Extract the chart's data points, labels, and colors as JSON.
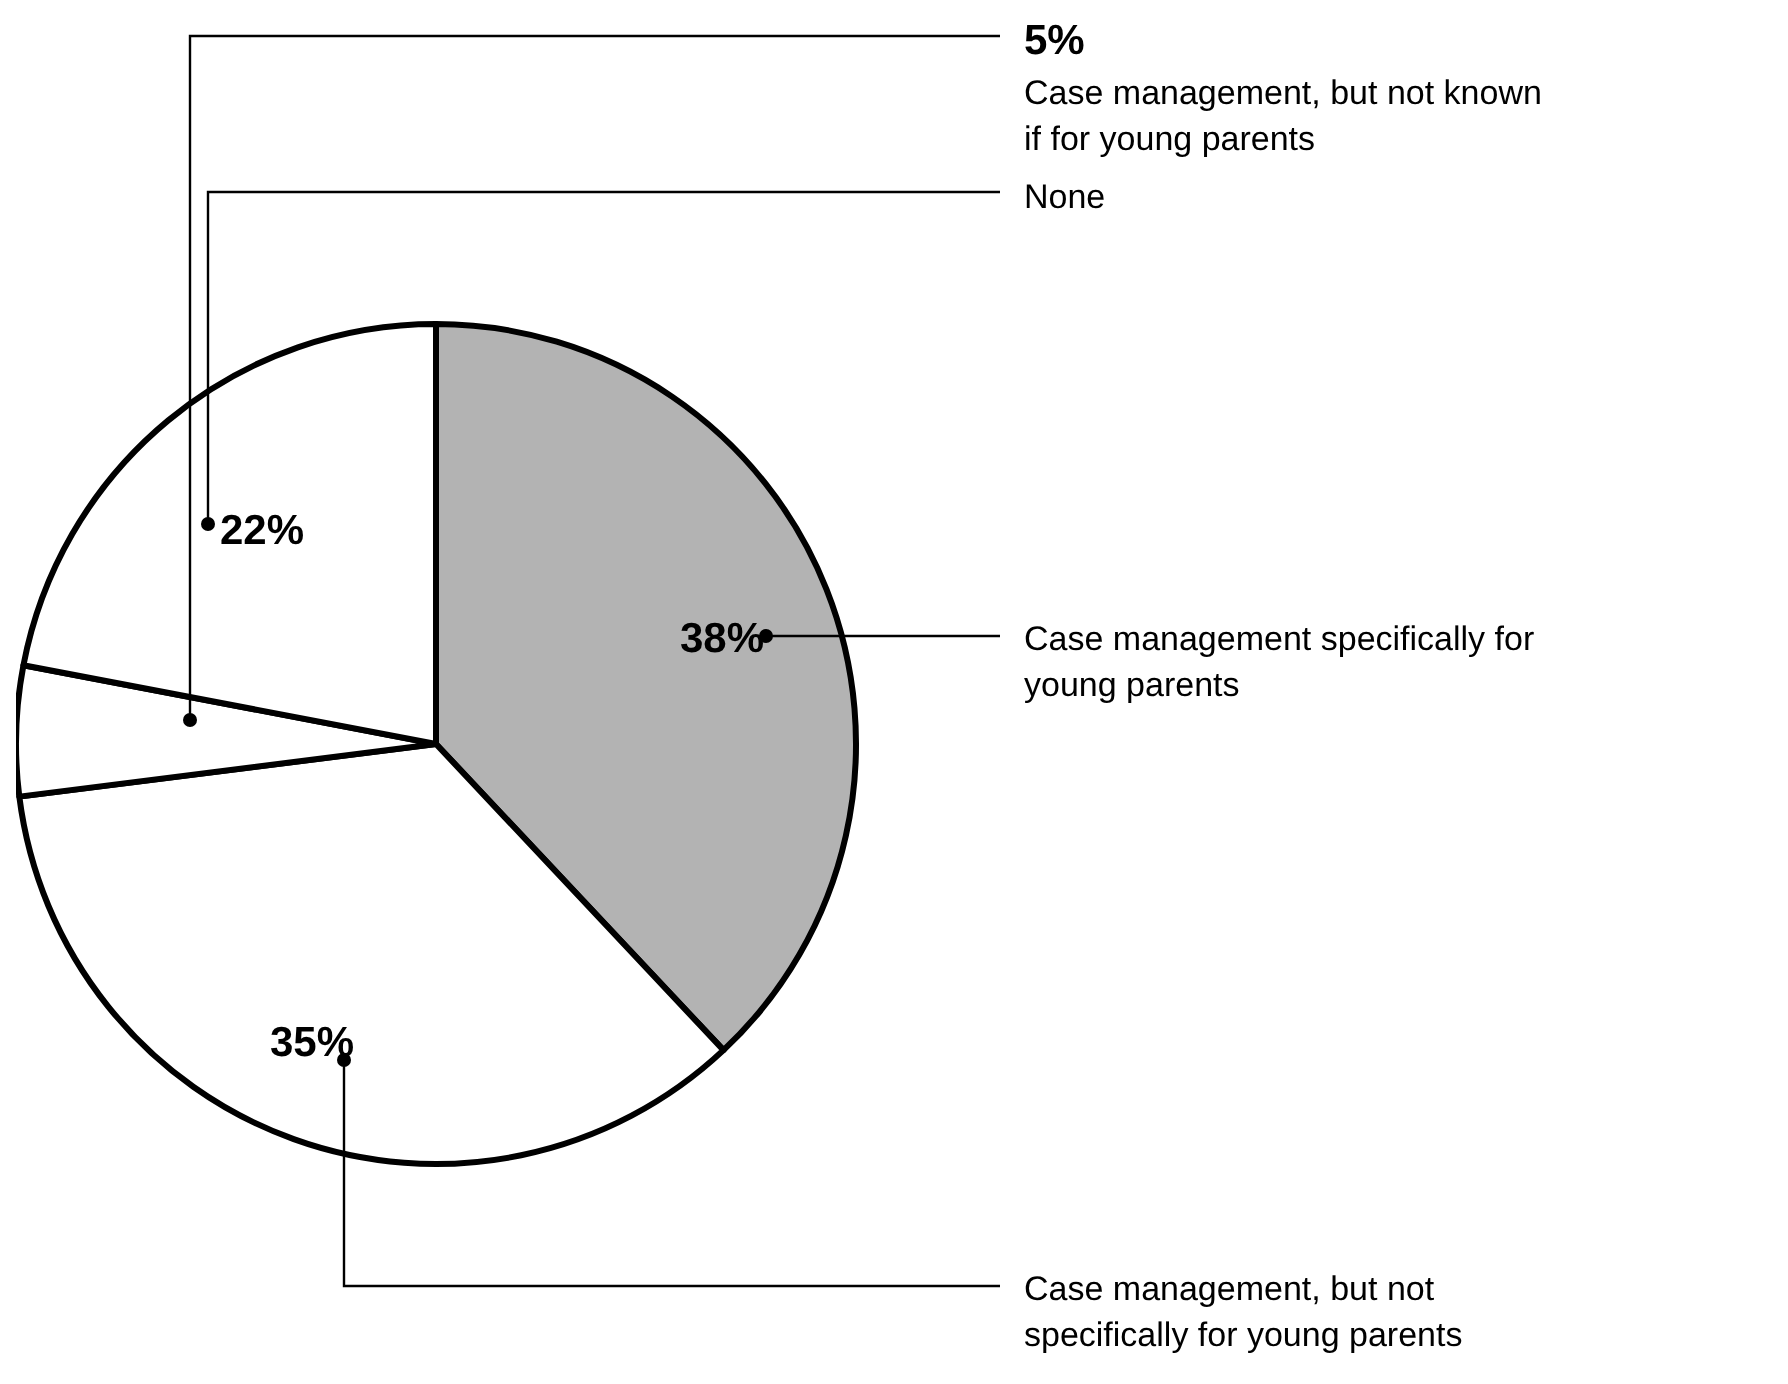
{
  "chart_data": {
    "type": "pie",
    "categories": [
      "Case management specifically for young parents",
      "Case management, but not specifically for young parents",
      "Case management, but not known if for young parents",
      "None"
    ],
    "values": [
      38,
      35,
      5,
      22
    ],
    "colors": [
      "#b3b3b3",
      "#ffffff",
      "#ffffff",
      "#ffffff"
    ],
    "value_labels": [
      "38%",
      "35%",
      "5%",
      "22%"
    ]
  }
}
